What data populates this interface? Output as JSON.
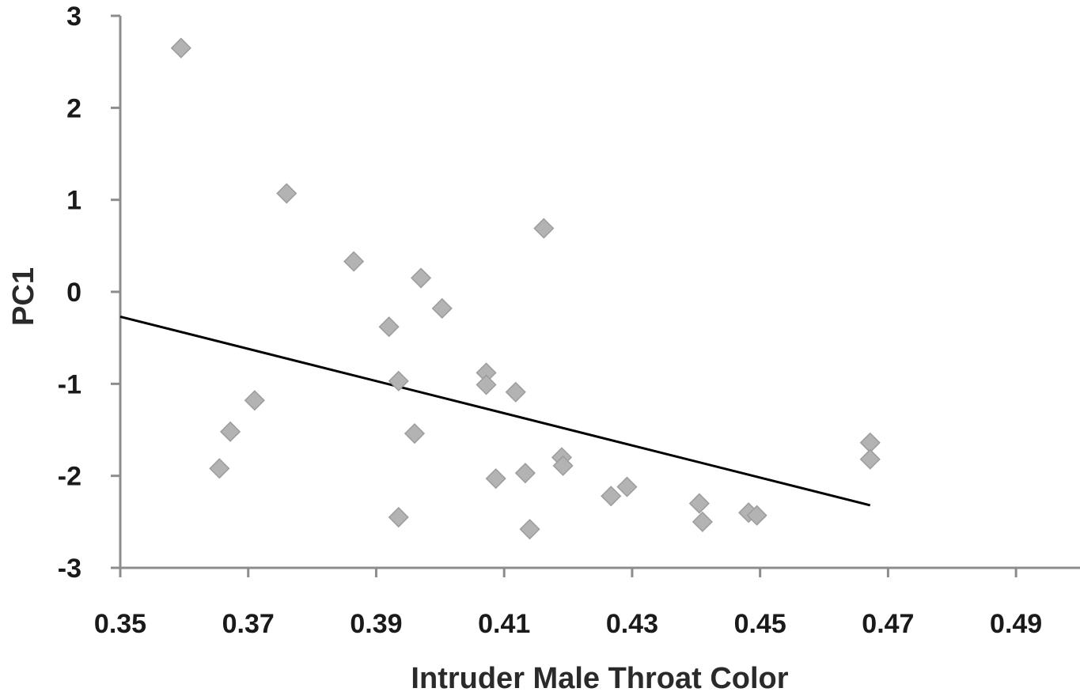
{
  "chart_data": {
    "type": "scatter",
    "xlabel": "Intruder Male Throat Color",
    "ylabel": "PC1",
    "xlim": [
      0.35,
      0.5
    ],
    "ylim": [
      -3,
      3
    ],
    "x_ticks": [
      0.35,
      0.37,
      0.39,
      0.41,
      0.43,
      0.45,
      0.47,
      0.49
    ],
    "x_tick_labels": [
      "0.35",
      "0.37",
      "0.39",
      "0.41",
      "0.43",
      "0.45",
      "0.47",
      "0.49"
    ],
    "y_ticks": [
      3,
      2,
      1,
      0,
      -1,
      -2,
      -3
    ],
    "y_tick_labels": [
      "3",
      "2",
      "1",
      "0",
      "-1",
      "-2",
      "-3"
    ],
    "grid": false,
    "legend": "none",
    "series": [
      {
        "marker": "diamond",
        "color": "#b3b3b3",
        "points": [
          {
            "x": 0.3595,
            "y": 2.65
          },
          {
            "x": 0.3655,
            "y": -1.92
          },
          {
            "x": 0.3672,
            "y": -1.52
          },
          {
            "x": 0.371,
            "y": -1.18
          },
          {
            "x": 0.376,
            "y": 1.07
          },
          {
            "x": 0.3865,
            "y": 0.33
          },
          {
            "x": 0.392,
            "y": -0.38
          },
          {
            "x": 0.3935,
            "y": -0.97
          },
          {
            "x": 0.3935,
            "y": -2.45
          },
          {
            "x": 0.396,
            "y": -1.54
          },
          {
            "x": 0.397,
            "y": 0.15
          },
          {
            "x": 0.4003,
            "y": -0.18
          },
          {
            "x": 0.4072,
            "y": -0.88
          },
          {
            "x": 0.4072,
            "y": -1.01
          },
          {
            "x": 0.4087,
            "y": -2.03
          },
          {
            "x": 0.4118,
            "y": -1.09
          },
          {
            "x": 0.4133,
            "y": -1.97
          },
          {
            "x": 0.414,
            "y": -2.58
          },
          {
            "x": 0.4162,
            "y": 0.69
          },
          {
            "x": 0.419,
            "y": -1.8
          },
          {
            "x": 0.4192,
            "y": -1.89
          },
          {
            "x": 0.4267,
            "y": -2.22
          },
          {
            "x": 0.4292,
            "y": -2.12
          },
          {
            "x": 0.4405,
            "y": -2.3
          },
          {
            "x": 0.441,
            "y": -2.5
          },
          {
            "x": 0.4482,
            "y": -2.4
          },
          {
            "x": 0.4495,
            "y": -2.43
          },
          {
            "x": 0.4672,
            "y": -1.64
          },
          {
            "x": 0.4672,
            "y": -1.82
          }
        ]
      }
    ],
    "trendline": {
      "x_start": 0.35,
      "y_start": -0.27,
      "x_end": 0.4672,
      "y_end": -2.32,
      "color": "#000000"
    }
  }
}
